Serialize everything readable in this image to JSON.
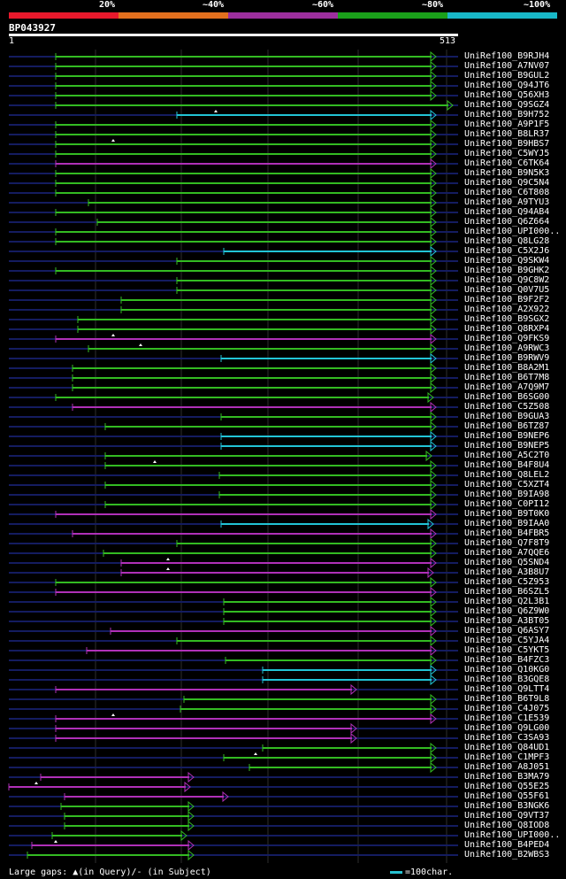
{
  "legend": {
    "labels": [
      "20%",
      "~40%",
      "~60%",
      "~80%",
      "~100%"
    ],
    "colors": [
      "#e8192c",
      "#e3701e",
      "#9d2f9e",
      "#1aa01a",
      "#18b8c8"
    ]
  },
  "query": {
    "id": "BP043927",
    "start": "1",
    "end": "513",
    "length": 513
  },
  "colors": {
    "green": "#33bb22",
    "cyan": "#22c4d6",
    "magenta": "#b030b8",
    "navy": "#141c60",
    "grid": "#2e2e2e"
  },
  "footer": {
    "text": "Large gaps: ▲(in Query)/- (in Subject)",
    "scale_text": "=100char."
  },
  "hits": [
    {
      "label": "UniRef100_B9RJH4",
      "c": "g",
      "s": 63,
      "e": 493
    },
    {
      "label": "UniRef100_A7NV07",
      "c": "g",
      "s": 63,
      "e": 493
    },
    {
      "label": "UniRef100_B9GUL2",
      "c": "g",
      "s": 63,
      "e": 493
    },
    {
      "label": "UniRef100_Q94JT6",
      "c": "g",
      "s": 63,
      "e": 493
    },
    {
      "label": "UniRef100_Q56XH3",
      "c": "g",
      "s": 63,
      "e": 493
    },
    {
      "label": "UniRef100_Q9SGZ4",
      "c": "g",
      "s": 63,
      "e": 512
    },
    {
      "label": "UniRef100_B9H752",
      "c": "c",
      "s": 200,
      "e": 493,
      "gap": true
    },
    {
      "label": "UniRef100_A9P1F5",
      "c": "g",
      "s": 63,
      "e": 493
    },
    {
      "label": "UniRef100_B8LR37",
      "c": "g",
      "s": 63,
      "e": 493
    },
    {
      "label": "UniRef100_B9HBS7",
      "c": "g",
      "s": 63,
      "e": 493,
      "gap": true
    },
    {
      "label": "UniRef100_C5WYJ5",
      "c": "g",
      "s": 63,
      "e": 493
    },
    {
      "label": "UniRef100_C6TK64",
      "c": "m",
      "s": 63,
      "e": 493
    },
    {
      "label": "UniRef100_B9N5K3",
      "c": "g",
      "s": 63,
      "e": 493
    },
    {
      "label": "UniRef100_Q9C5N4",
      "c": "g",
      "s": 63,
      "e": 493
    },
    {
      "label": "UniRef100_C6T808",
      "c": "g",
      "s": 63,
      "e": 493
    },
    {
      "label": "UniRef100_A9TYU3",
      "c": "g",
      "s": 100,
      "e": 493
    },
    {
      "label": "UniRef100_Q94AB4",
      "c": "g",
      "s": 63,
      "e": 493
    },
    {
      "label": "UniRef100_Q6Z664",
      "c": "g",
      "s": 110,
      "e": 493
    },
    {
      "label": "UniRef100_UPI000..",
      "c": "g",
      "s": 63,
      "e": 493
    },
    {
      "label": "UniRef100_Q8LG28",
      "c": "g",
      "s": 63,
      "e": 493
    },
    {
      "label": "UniRef100_C5X2J6",
      "c": "c",
      "s": 253,
      "e": 493
    },
    {
      "label": "UniRef100_Q9SKW4",
      "c": "g",
      "s": 200,
      "e": 493
    },
    {
      "label": "UniRef100_B9GHK2",
      "c": "g",
      "s": 63,
      "e": 493
    },
    {
      "label": "UniRef100_Q9C8W2",
      "c": "g",
      "s": 200,
      "e": 493
    },
    {
      "label": "UniRef100_Q0V7U5",
      "c": "g",
      "s": 200,
      "e": 493
    },
    {
      "label": "UniRef100_B9F2F2",
      "c": "g",
      "s": 137,
      "e": 493
    },
    {
      "label": "UniRef100_A2X922",
      "c": "g",
      "s": 137,
      "e": 493
    },
    {
      "label": "UniRef100_B9SGX2",
      "c": "g",
      "s": 88,
      "e": 493
    },
    {
      "label": "UniRef100_Q8RXP4",
      "c": "g",
      "s": 88,
      "e": 493
    },
    {
      "label": "UniRef100_Q9FKS9",
      "c": "m",
      "s": 63,
      "e": 493,
      "gap": true
    },
    {
      "label": "UniRef100_A9RWC3",
      "c": "g",
      "s": 100,
      "e": 493,
      "gap": true
    },
    {
      "label": "UniRef100_B9RWV9",
      "c": "c",
      "s": 250,
      "e": 493
    },
    {
      "label": "UniRef100_B8A2M1",
      "c": "g",
      "s": 82,
      "e": 493
    },
    {
      "label": "UniRef100_B6T7M8",
      "c": "g",
      "s": 82,
      "e": 493
    },
    {
      "label": "UniRef100_A7Q9M7",
      "c": "g",
      "s": 82,
      "e": 493
    },
    {
      "label": "UniRef100_B6SG00",
      "c": "g",
      "s": 63,
      "e": 490
    },
    {
      "label": "UniRef100_C5Z508",
      "c": "m",
      "s": 82,
      "e": 493
    },
    {
      "label": "UniRef100_B9GUA3",
      "c": "g",
      "s": 250,
      "e": 493
    },
    {
      "label": "UniRef100_B6TZ87",
      "c": "g",
      "s": 119,
      "e": 493
    },
    {
      "label": "UniRef100_B9NEP6",
      "c": "c",
      "s": 250,
      "e": 493
    },
    {
      "label": "UniRef100_B9NEP5",
      "c": "c",
      "s": 250,
      "e": 493
    },
    {
      "label": "UniRef100_A5C2T0",
      "c": "g",
      "s": 119,
      "e": 488
    },
    {
      "label": "UniRef100_B4F8U4",
      "c": "g",
      "s": 119,
      "e": 493,
      "gap": true
    },
    {
      "label": "UniRef100_Q8LEL2",
      "c": "g",
      "s": 248,
      "e": 493
    },
    {
      "label": "UniRef100_C5XZT4",
      "c": "g",
      "s": 119,
      "e": 493
    },
    {
      "label": "UniRef100_B9IA98",
      "c": "g",
      "s": 248,
      "e": 493
    },
    {
      "label": "UniRef100_C0PI12",
      "c": "g",
      "s": 119,
      "e": 493
    },
    {
      "label": "UniRef100_B9T0K0",
      "c": "m",
      "s": 63,
      "e": 493
    },
    {
      "label": "UniRef100_B9IAA0",
      "c": "c",
      "s": 250,
      "e": 490
    },
    {
      "label": "UniRef100_B4FBR5",
      "c": "m",
      "s": 82,
      "e": 493
    },
    {
      "label": "UniRef100_Q7F8T9",
      "c": "g",
      "s": 200,
      "e": 493
    },
    {
      "label": "UniRef100_A7QQE6",
      "c": "g",
      "s": 117,
      "e": 493
    },
    {
      "label": "UniRef100_Q5SND4",
      "c": "m",
      "s": 137,
      "e": 493,
      "gap": true
    },
    {
      "label": "UniRef100_A3B8U7",
      "c": "m",
      "s": 137,
      "e": 490,
      "gap": true
    },
    {
      "label": "UniRef100_C5Z953",
      "c": "g",
      "s": 63,
      "e": 493
    },
    {
      "label": "UniRef100_B6SZL5",
      "c": "m",
      "s": 63,
      "e": 493
    },
    {
      "label": "UniRef100_Q2L3B1",
      "c": "g",
      "s": 253,
      "e": 493
    },
    {
      "label": "UniRef100_Q6Z9W0",
      "c": "g",
      "s": 253,
      "e": 493
    },
    {
      "label": "UniRef100_A3BT05",
      "c": "g",
      "s": 253,
      "e": 493
    },
    {
      "label": "UniRef100_Q6ASY7",
      "c": "m",
      "s": 125,
      "e": 493
    },
    {
      "label": "UniRef100_C5YJA4",
      "c": "g",
      "s": 200,
      "e": 493
    },
    {
      "label": "UniRef100_C5YKT5",
      "c": "m",
      "s": 98,
      "e": 493
    },
    {
      "label": "UniRef100_B4FZC3",
      "c": "g",
      "s": 255,
      "e": 493
    },
    {
      "label": "UniRef100_Q10KG0",
      "c": "c",
      "s": 297,
      "e": 493
    },
    {
      "label": "UniRef100_B3GQE8",
      "c": "c",
      "s": 297,
      "e": 493
    },
    {
      "label": "UniRef100_Q9LTT4",
      "c": "m",
      "s": 63,
      "e": 403
    },
    {
      "label": "UniRef100_B6T9L8",
      "c": "g",
      "s": 208,
      "e": 493
    },
    {
      "label": "UniRef100_C4J075",
      "c": "g",
      "s": 204,
      "e": 493
    },
    {
      "label": "UniRef100_C1E539",
      "c": "m",
      "s": 63,
      "e": 493,
      "gap": true
    },
    {
      "label": "UniRef100_Q9LG00",
      "c": "m",
      "s": 63,
      "e": 403
    },
    {
      "label": "UniRef100_C3SA93",
      "c": "m",
      "s": 63,
      "e": 403
    },
    {
      "label": "UniRef100_Q84UD1",
      "c": "g",
      "s": 297,
      "e": 493
    },
    {
      "label": "UniRef100_C1MPF3",
      "c": "g",
      "s": 253,
      "e": 493,
      "gap": true
    },
    {
      "label": "UniRef100_A8J051",
      "c": "g",
      "s": 282,
      "e": 493
    },
    {
      "label": "UniRef100_B3MA79",
      "c": "m",
      "s": 46,
      "e": 219
    },
    {
      "label": "UniRef100_Q55E25",
      "c": "m",
      "s": 10,
      "e": 215,
      "gap": true
    },
    {
      "label": "UniRef100_Q55F61",
      "c": "m",
      "s": 73,
      "e": 258
    },
    {
      "label": "UniRef100_B3NGK6",
      "c": "g",
      "s": 69,
      "e": 219
    },
    {
      "label": "UniRef100_Q9VT37",
      "c": "g",
      "s": 73,
      "e": 219
    },
    {
      "label": "UniRef100_Q8IOD8",
      "c": "g",
      "s": 73,
      "e": 219
    },
    {
      "label": "UniRef100_UPI000..",
      "c": "g",
      "s": 59,
      "e": 211
    },
    {
      "label": "UniRef100_B4PED4",
      "c": "m",
      "s": 36,
      "e": 219,
      "gap": true
    },
    {
      "label": "UniRef100_B2WBS3",
      "c": "g",
      "s": 31,
      "e": 219
    }
  ]
}
